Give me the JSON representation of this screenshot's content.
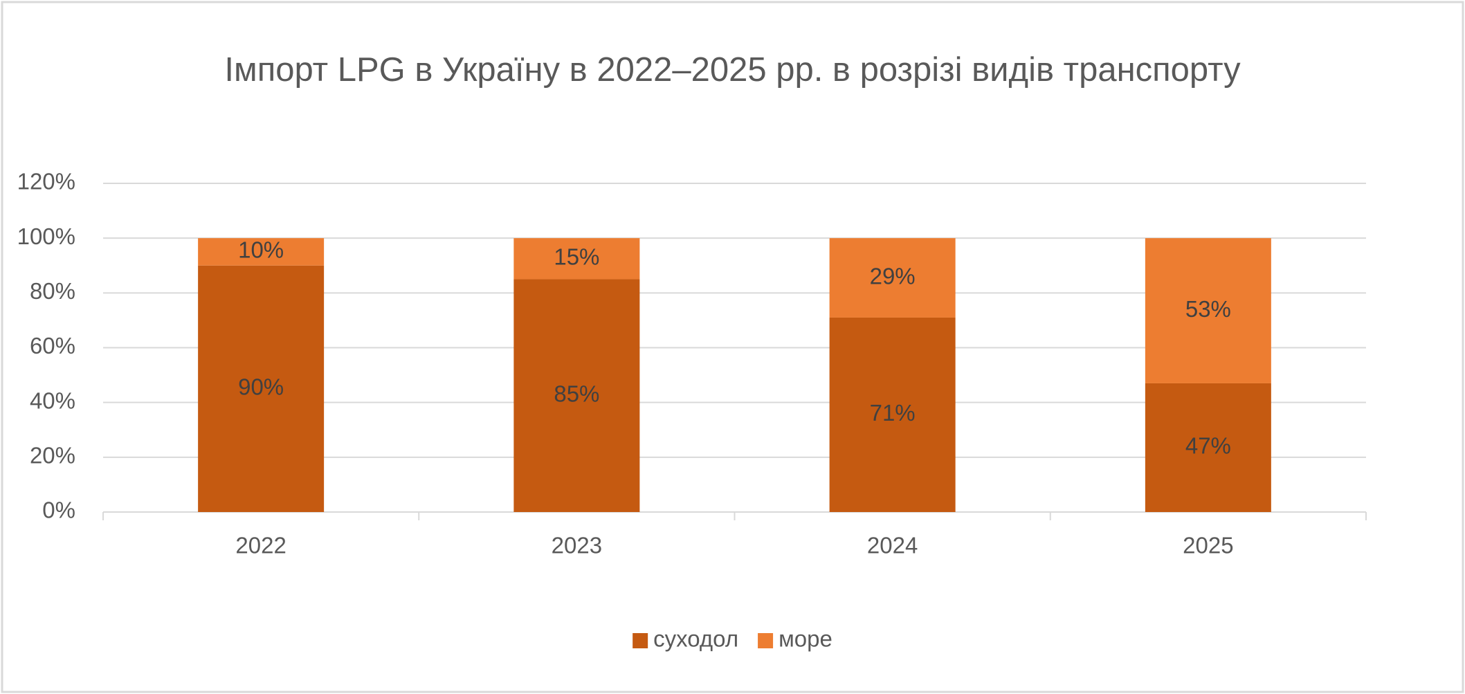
{
  "chart_data": {
    "type": "stacked_bar",
    "title": "Імпорт LPG в Україну в 2022–2025 рр. в розрізі видів транспорту",
    "categories": [
      "2022",
      "2023",
      "2024",
      "2025"
    ],
    "series": [
      {
        "name": "суходол",
        "color": "#c55a11",
        "values": [
          90,
          85,
          71,
          47
        ],
        "value_labels": [
          "90%",
          "85%",
          "71%",
          "47%"
        ]
      },
      {
        "name": "море",
        "color": "#ed7d31",
        "values": [
          10,
          15,
          29,
          53
        ],
        "value_labels": [
          "10%",
          "15%",
          "29%",
          "53%"
        ]
      }
    ],
    "ylim": [
      0,
      120
    ],
    "yticks": [
      {
        "value": 0,
        "label": "0%"
      },
      {
        "value": 20,
        "label": "20%"
      },
      {
        "value": 40,
        "label": "40%"
      },
      {
        "value": 60,
        "label": "60%"
      },
      {
        "value": 80,
        "label": "80%"
      },
      {
        "value": 100,
        "label": "100%"
      },
      {
        "value": 120,
        "label": "120%"
      }
    ],
    "grid": true,
    "legend": "bottom"
  }
}
